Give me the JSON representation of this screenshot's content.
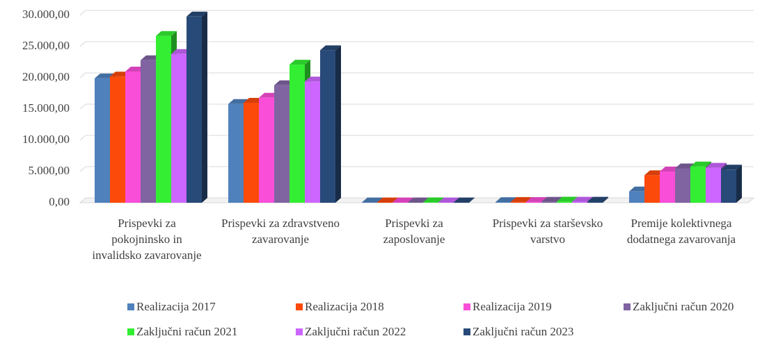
{
  "chart_data": {
    "type": "bar3d",
    "categories": [
      "Prispevki za pokojninsko in invalidsko zavarovanje",
      "Prispevki za zdravstveno zavarovanje",
      "Prispevki za zaposlovanje",
      "Prispevki za starševsko varstvo",
      "Premije kolektivnega dodatnega zavarovanja"
    ],
    "series": [
      {
        "name": "Realizacija 2017",
        "color": "#4f81bd",
        "values": [
          19900,
          15800,
          50,
          100,
          1800
        ]
      },
      {
        "name": "Realizacija 2018",
        "color": "#fc4a0a",
        "values": [
          20200,
          16000,
          60,
          120,
          4400
        ]
      },
      {
        "name": "Realizacija 2019",
        "color": "#f94ed8",
        "values": [
          21000,
          16800,
          60,
          130,
          5000
        ]
      },
      {
        "name": "Zaključni račun 2020",
        "color": "#8064a2",
        "values": [
          22800,
          18800,
          60,
          150,
          5500
        ]
      },
      {
        "name": "Zaključni račun 2021",
        "color": "#33ee33",
        "values": [
          26700,
          22100,
          70,
          180,
          5800
        ]
      },
      {
        "name": "Zaključni račun 2022",
        "color": "#cc66ff",
        "values": [
          23800,
          19400,
          60,
          160,
          5600
        ]
      },
      {
        "name": "Zaključni račun 2023",
        "color": "#284a78",
        "values": [
          29800,
          24400,
          60,
          170,
          5300
        ]
      }
    ],
    "ylim": [
      0,
      30000
    ],
    "yticks": [
      {
        "value": 0,
        "label": "0,00"
      },
      {
        "value": 5000,
        "label": "5.000,00"
      },
      {
        "value": 10000,
        "label": "10.000,00"
      },
      {
        "value": 15000,
        "label": "15.000,00"
      },
      {
        "value": 20000,
        "label": "20.000,00"
      },
      {
        "value": 25000,
        "label": "25.000,00"
      },
      {
        "value": 30000,
        "label": "30.000,00"
      }
    ],
    "grid": true
  }
}
